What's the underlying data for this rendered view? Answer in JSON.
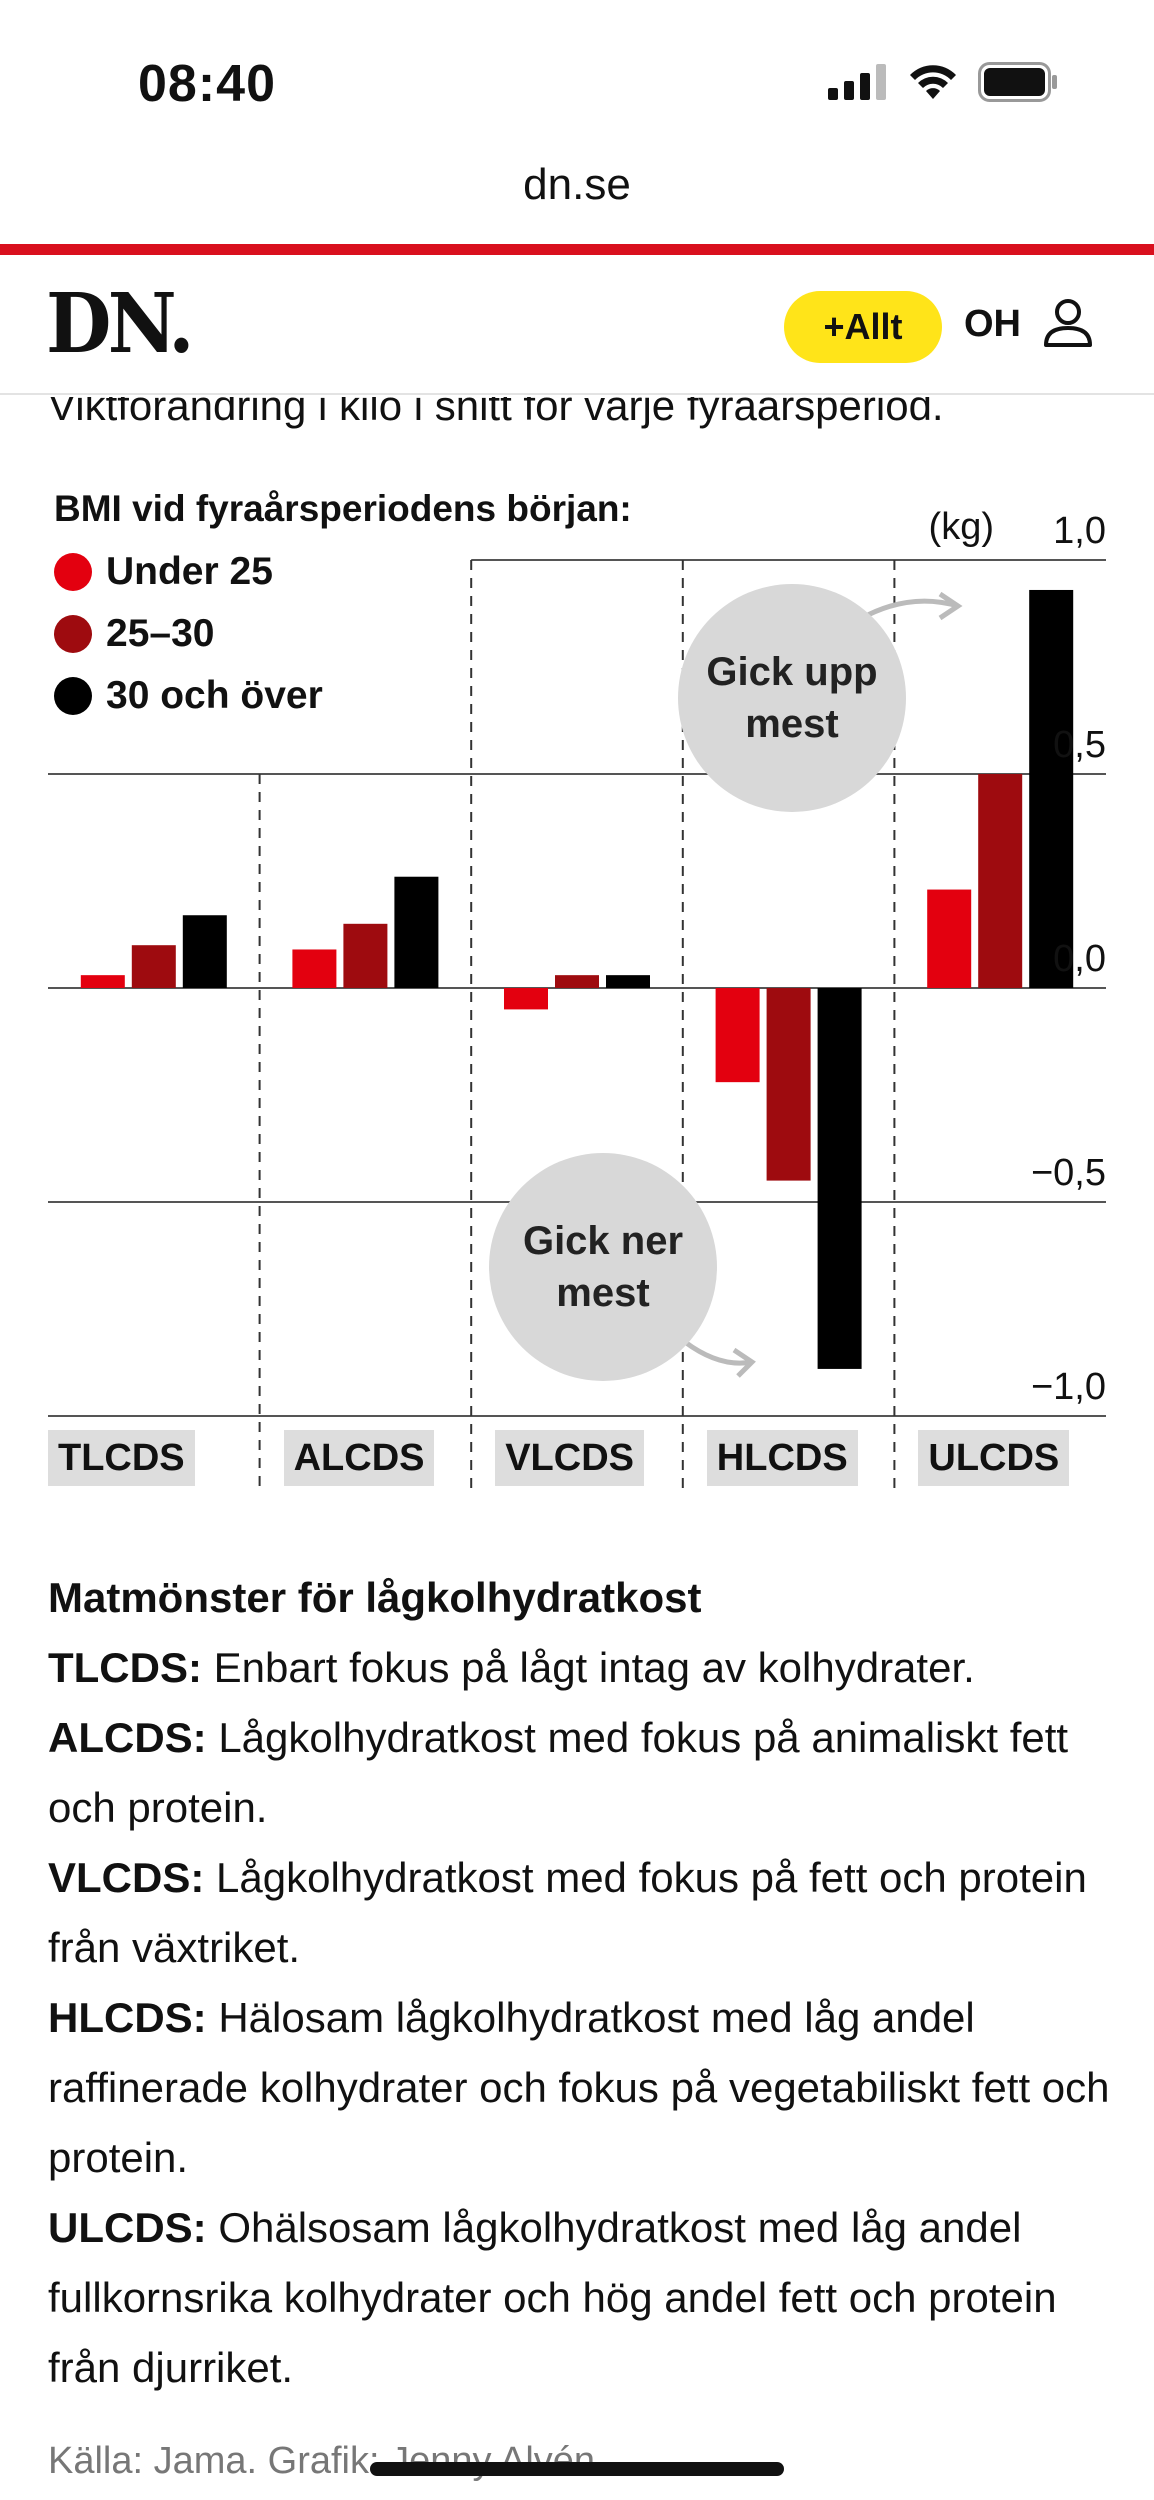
{
  "status": {
    "time": "08:40"
  },
  "browser": {
    "url": "dn.se"
  },
  "header": {
    "logo": "DN.",
    "allt_label": "+Allt",
    "user_initials": "OH"
  },
  "article": {
    "subtitle": "Viktförändring i kilo i snitt för varje fyraårsperiod.",
    "legend_title": "BMI vid fyraårsperiodens början:",
    "bubble_up": "Gick upp mest",
    "bubble_down": "Gick ner mest",
    "defs_heading": "Matmönster för lågkolhydratkost",
    "definitions": [
      {
        "term": "TLCDS:",
        "text": " Enbart fokus på lågt intag av kolhydrater."
      },
      {
        "term": "ALCDS:",
        "text": " Lågkolhydratkost med fokus på animaliskt fett och protein."
      },
      {
        "term": "VLCDS:",
        "text": " Lågkolhydratkost med fokus på fett och protein från växtriket."
      },
      {
        "term": "HLCDS:",
        "text": " Hälosam lågkolhydratkost med låg andel raffinerade kolhydrater och fokus på vegetabiliskt fett och protein."
      },
      {
        "term": "ULCDS:",
        "text": " Ohälsosam lågkolhydratkost med låg andel fullkornsrika kolhydrater och hög andel fett och protein från djurriket."
      }
    ],
    "source": "Källa: Jama. Grafik: Jenny Alvén."
  },
  "chart_data": {
    "type": "bar",
    "categories": [
      "TLCDS",
      "ALCDS",
      "VLCDS",
      "HLCDS",
      "ULCDS"
    ],
    "series": [
      {
        "name": "Under 25",
        "color": "#e3000f",
        "values": [
          0.03,
          0.09,
          -0.05,
          -0.22,
          0.23
        ]
      },
      {
        "name": "25–30",
        "color": "#9e0b0f",
        "values": [
          0.1,
          0.15,
          0.03,
          -0.45,
          0.5
        ]
      },
      {
        "name": "30 och över",
        "color": "#000000",
        "values": [
          0.17,
          0.26,
          0.03,
          -0.89,
          0.93
        ]
      }
    ],
    "ylabel_unit": "(kg)",
    "yticks": [
      1.0,
      0.5,
      0.0,
      -0.5,
      -1.0
    ],
    "ytick_labels": [
      "1,0",
      "0,5",
      "0,0",
      "−0,5",
      "−1,0"
    ],
    "ylim": [
      -1.0,
      1.0
    ],
    "legend_position": "top-left",
    "grid": true
  }
}
